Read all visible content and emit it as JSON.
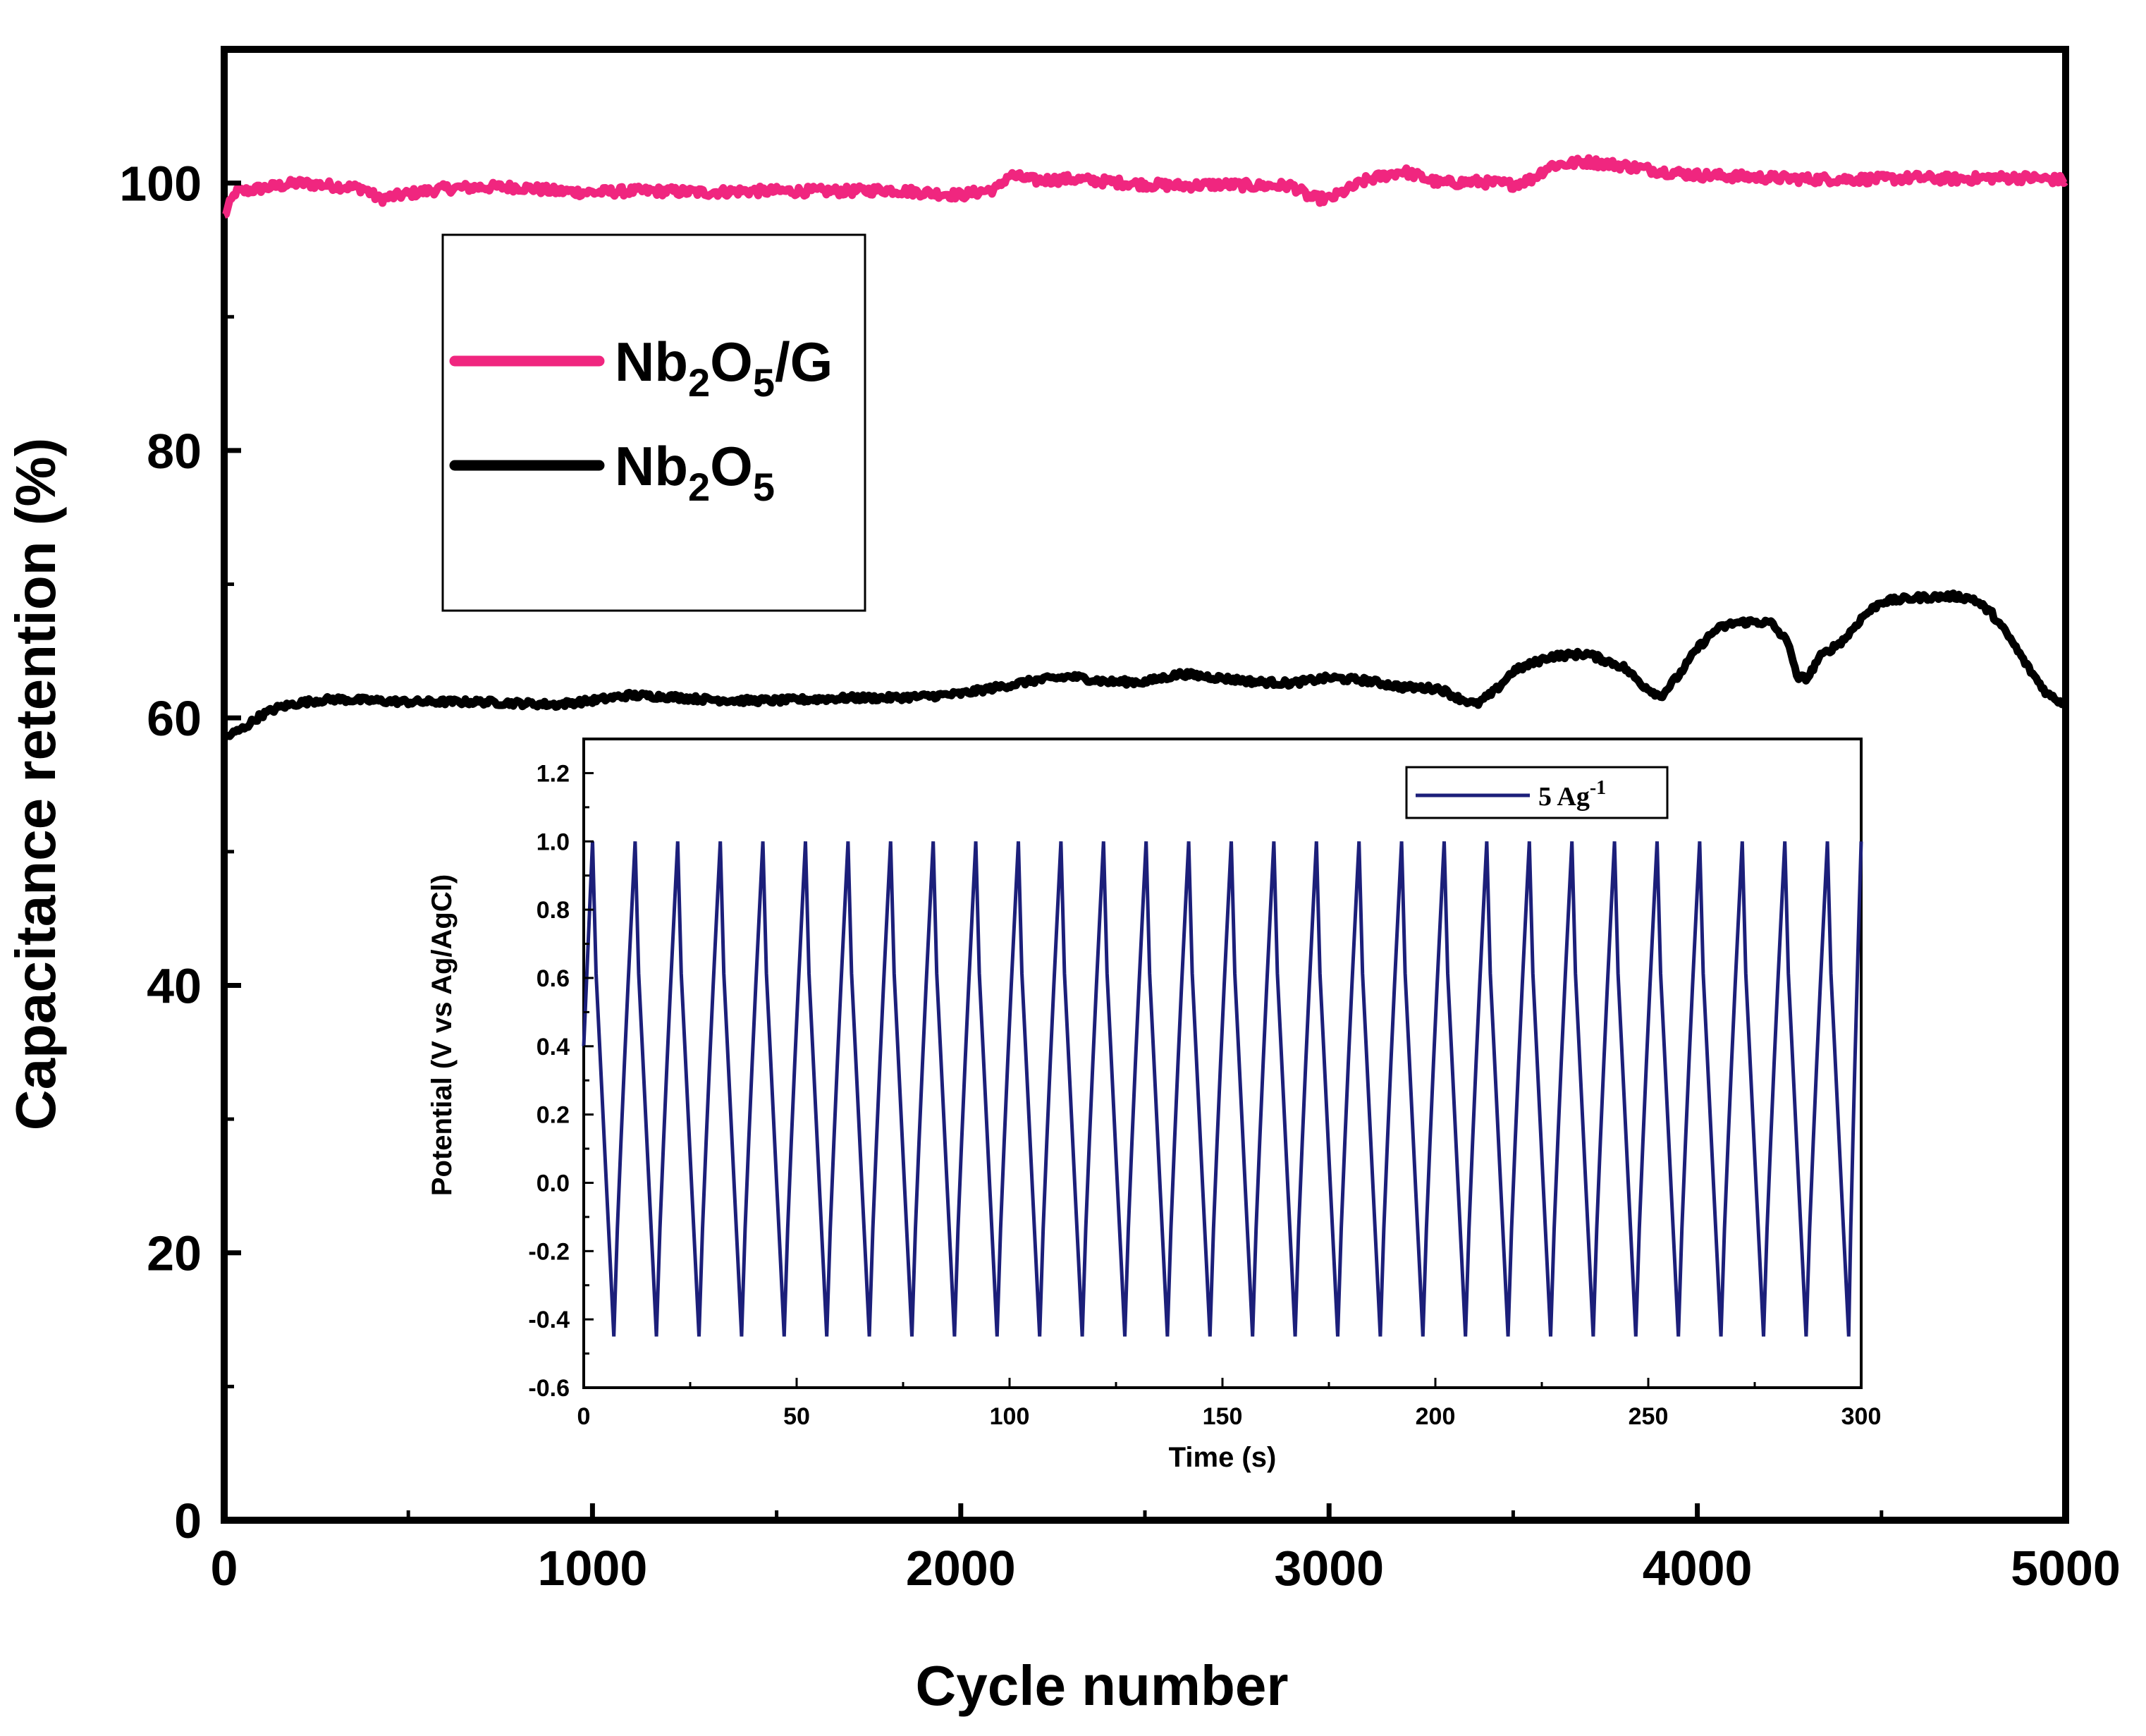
{
  "chart_data": [
    {
      "type": "line",
      "title": "",
      "xlabel": "Cycle number",
      "ylabel": "Capacitance retention (%)",
      "xlim": [
        0,
        5000
      ],
      "ylim": [
        0,
        110
      ],
      "xticks": [
        0,
        1000,
        2000,
        3000,
        4000,
        5000
      ],
      "yticks": [
        0,
        20,
        40,
        60,
        80,
        100
      ],
      "grid": false,
      "legend_position": "upper-left",
      "series": [
        {
          "name": "Nb2O5/G",
          "legend": {
            "base1": "Nb",
            "sub1": "2",
            "base2": "O",
            "sub2": "5",
            "suffix": "/G"
          },
          "color": "#f0267f",
          "x": [
            0,
            30,
            100,
            200,
            300,
            380,
            420,
            500,
            600,
            700,
            800,
            900,
            1000,
            1100,
            1200,
            1300,
            1400,
            1500,
            1600,
            1700,
            1800,
            1900,
            2000,
            2100,
            2130,
            2200,
            2300,
            2400,
            2500,
            2600,
            2700,
            2800,
            2900,
            2950,
            3000,
            3050,
            3100,
            3200,
            3300,
            3400,
            3500,
            3550,
            3600,
            3700,
            3800,
            3900,
            4000,
            4100,
            4200,
            4300,
            4400,
            4500,
            4600,
            4700,
            4800,
            4900,
            5000
          ],
          "y": [
            97.5,
            99.3,
            99.6,
            100.0,
            99.8,
            99.6,
            98.8,
            99.2,
            99.6,
            99.7,
            99.7,
            99.4,
            99.3,
            99.4,
            99.4,
            99.3,
            99.4,
            99.4,
            99.4,
            99.4,
            99.5,
            99.3,
            99.1,
            99.6,
            100.6,
            100.2,
            100.3,
            100.1,
            99.9,
            99.8,
            99.9,
            99.8,
            99.8,
            98.9,
            98.8,
            99.5,
            100.2,
            100.9,
            100.0,
            100.1,
            99.9,
            100.3,
            101.3,
            101.6,
            101.3,
            100.9,
            100.6,
            100.5,
            100.4,
            100.3,
            100.3,
            100.3,
            100.4,
            100.3,
            100.4,
            100.4,
            100.2
          ]
        },
        {
          "name": "Nb2O5",
          "legend": {
            "base1": "Nb",
            "sub1": "2",
            "base2": "O",
            "sub2": "5",
            "suffix": ""
          },
          "color": "#000000",
          "x": [
            0,
            50,
            100,
            150,
            200,
            250,
            300,
            400,
            500,
            600,
            700,
            800,
            900,
            1000,
            1100,
            1200,
            1300,
            1400,
            1500,
            1600,
            1700,
            1800,
            1900,
            2000,
            2100,
            2200,
            2300,
            2400,
            2500,
            2600,
            2700,
            2800,
            2900,
            3000,
            3100,
            3200,
            3300,
            3350,
            3400,
            3450,
            3500,
            3600,
            3700,
            3800,
            3850,
            3900,
            3950,
            4000,
            4050,
            4100,
            4150,
            4200,
            4250,
            4270,
            4300,
            4330,
            4400,
            4450,
            4500,
            4600,
            4700,
            4750,
            4800,
            4850,
            4900,
            4950,
            5000
          ],
          "y": [
            58.5,
            59.2,
            60.2,
            60.8,
            61.1,
            61.3,
            61.4,
            61.3,
            61.2,
            61.2,
            61.2,
            61.1,
            61.0,
            61.3,
            61.7,
            61.6,
            61.4,
            61.3,
            61.3,
            61.4,
            61.5,
            61.5,
            61.6,
            61.8,
            62.3,
            62.8,
            63.1,
            62.7,
            62.7,
            63.3,
            63.0,
            62.7,
            62.6,
            63.0,
            62.8,
            62.3,
            62.2,
            61.5,
            61.0,
            62.0,
            63.5,
            64.6,
            64.8,
            63.8,
            62.5,
            61.6,
            63.2,
            65.2,
            66.6,
            67.1,
            67.2,
            67.1,
            65.5,
            63.0,
            63.0,
            64.5,
            65.9,
            67.6,
            68.7,
            69.0,
            69.1,
            68.9,
            67.8,
            65.9,
            63.7,
            61.8,
            61.0
          ]
        }
      ]
    },
    {
      "type": "line",
      "title": "",
      "xlabel": "Time (s)",
      "ylabel": "Potential (V vs Ag/AgCl)",
      "xlim": [
        0,
        300
      ],
      "ylim": [
        -0.6,
        1.3
      ],
      "xticks": [
        0,
        50,
        100,
        150,
        200,
        250,
        300
      ],
      "yticks": [
        -0.6,
        -0.4,
        -0.2,
        0.0,
        0.2,
        0.4,
        0.6,
        0.8,
        1.0,
        1.2
      ],
      "ytick_labels": [
        "-0.6",
        "-0.4",
        "-0.2",
        "0.0",
        "0.2",
        "0.4",
        "0.6",
        "0.8",
        "1.0",
        "1.2"
      ],
      "grid": false,
      "legend_position": "top-right",
      "series": [
        {
          "name": "5 Ag-1",
          "legend": {
            "text": "5 Ag",
            "sup": "-1"
          },
          "color": "#1c1f7a",
          "waveform": "galvanostatic charge-discharge",
          "start_time": 0,
          "start_potential": 0.4,
          "period_s": 10.0,
          "charge_time_s": 5.0,
          "discharge_time_s": 5.0,
          "v_max": 1.0,
          "v_min": -0.45,
          "end_time": 300,
          "end_potential": 0.25
        }
      ]
    }
  ]
}
